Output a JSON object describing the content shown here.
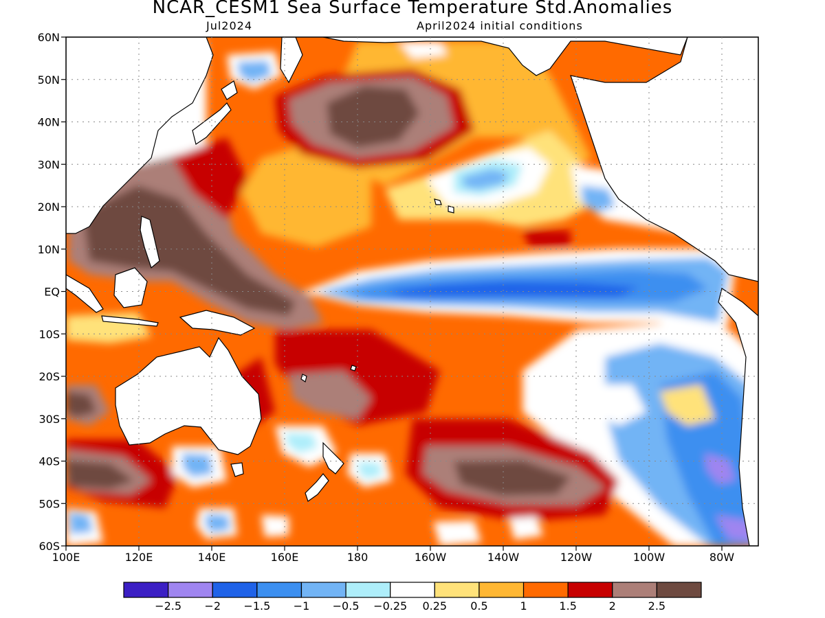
{
  "title": "NCAR_CESM1 Sea Surface Temperature Std.Anomalies",
  "valid_month": "Jul2024",
  "initial_conditions": "April2024 initial conditions",
  "map": {
    "lon_min": 100,
    "lon_max": 290,
    "lat_min": -60,
    "lat_max": 60,
    "lat_ticks": [
      {
        "value": 60,
        "label": "60N"
      },
      {
        "value": 50,
        "label": "50N"
      },
      {
        "value": 40,
        "label": "40N"
      },
      {
        "value": 30,
        "label": "30N"
      },
      {
        "value": 20,
        "label": "20N"
      },
      {
        "value": 10,
        "label": "10N"
      },
      {
        "value": 0,
        "label": "EQ"
      },
      {
        "value": -10,
        "label": "10S"
      },
      {
        "value": -20,
        "label": "20S"
      },
      {
        "value": -30,
        "label": "30S"
      },
      {
        "value": -40,
        "label": "40S"
      },
      {
        "value": -50,
        "label": "50S"
      },
      {
        "value": -60,
        "label": "60S"
      }
    ],
    "lon_ticks": [
      {
        "value": 100,
        "label": "100E"
      },
      {
        "value": 120,
        "label": "120E"
      },
      {
        "value": 140,
        "label": "140E"
      },
      {
        "value": 160,
        "label": "160E"
      },
      {
        "value": 180,
        "label": "180"
      },
      {
        "value": 200,
        "label": "160W"
      },
      {
        "value": 220,
        "label": "140W"
      },
      {
        "value": 240,
        "label": "120W"
      },
      {
        "value": 260,
        "label": "100W"
      },
      {
        "value": 280,
        "label": "80W"
      }
    ],
    "grid": true
  },
  "colorbar": {
    "colors": [
      "#3b1fc4",
      "#9f85f0",
      "#1f62e8",
      "#3c8ff0",
      "#72b4f5",
      "#aeeefa",
      "#ffffff",
      "#ffe27a",
      "#ffb733",
      "#ff6a00",
      "#c70000",
      "#ac7f78",
      "#6e4a40"
    ],
    "labels": [
      "−2.5",
      "−2",
      "−1.5",
      "−1",
      "−0.5",
      "−0.25",
      "0.25",
      "0.5",
      "1",
      "1.5",
      "2",
      "2.5"
    ]
  }
}
